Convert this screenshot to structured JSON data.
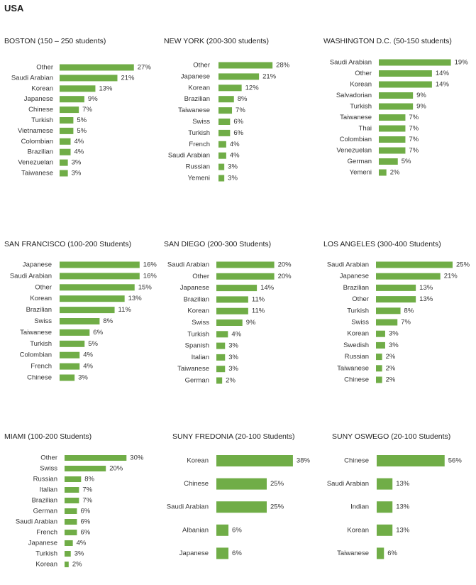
{
  "page_title": "USA",
  "colors": {
    "bar": "#70ad47",
    "text": "#333333"
  },
  "chart_data": [
    {
      "type": "bar",
      "orientation": "horizontal",
      "title": "BOSTON (150 – 250 students)",
      "categories": [
        "Other",
        "Saudi Arabian",
        "Korean",
        "Japanese",
        "Chinese",
        "Turkish",
        "Vietnamese",
        "Colombian",
        "Brazilian",
        "Venezuelan",
        "Taiwanese"
      ],
      "values": [
        27,
        21,
        13,
        9,
        7,
        5,
        5,
        4,
        4,
        3,
        3
      ],
      "value_labels": [
        "27%",
        "21%",
        "13%",
        "9%",
        "7%",
        "5%",
        "5%",
        "4%",
        "4%",
        "3%",
        "3%"
      ]
    },
    {
      "type": "bar",
      "orientation": "horizontal",
      "title": "NEW YORK (200-300 students)",
      "categories": [
        "Other",
        "Japanese",
        "Korean",
        "Brazilian",
        "Taiwanese",
        "Swiss",
        "Turkish",
        "French",
        "Saudi Arabian",
        "Russian",
        "Yemeni"
      ],
      "values": [
        28,
        21,
        12,
        8,
        7,
        6,
        6,
        4,
        4,
        3,
        3
      ],
      "value_labels": [
        "28%",
        "21%",
        "12%",
        "8%",
        "7%",
        "6%",
        "6%",
        "4%",
        "4%",
        "3%",
        "3%"
      ]
    },
    {
      "type": "bar",
      "orientation": "horizontal",
      "title": "WASHINGTON D.C. (50-150 students)",
      "categories": [
        "Saudi Arabian",
        "Other",
        "Korean",
        "Salvadorian",
        "Turkish",
        "Taiwanese",
        "Thai",
        "Colombian",
        "Venezuelan",
        "German",
        "Yemeni"
      ],
      "values": [
        19,
        14,
        14,
        9,
        9,
        7,
        7,
        7,
        7,
        5,
        2
      ],
      "value_labels": [
        "19%",
        "14%",
        "14%",
        "9%",
        "9%",
        "7%",
        "7%",
        "7%",
        "7%",
        "5%",
        "2%"
      ]
    },
    {
      "type": "bar",
      "orientation": "horizontal",
      "title": "SAN FRANCISCO (100-200 Students)",
      "categories": [
        "Japanese",
        "Saudi Arabian",
        "Other",
        "Korean",
        "Brazilian",
        "Swiss",
        "Taiwanese",
        "Turkish",
        "Colombian",
        "French",
        "Chinese"
      ],
      "values": [
        16,
        16,
        15,
        13,
        11,
        8,
        6,
        5,
        4,
        4,
        3
      ],
      "value_labels": [
        "16%",
        "16%",
        "15%",
        "13%",
        "11%",
        "8%",
        "6%",
        "5%",
        "4%",
        "4%",
        "3%"
      ]
    },
    {
      "type": "bar",
      "orientation": "horizontal",
      "title": "SAN DIEGO (200-300 Students)",
      "categories": [
        "Saudi Arabian",
        "Other",
        "Japanese",
        "Brazilian",
        "Korean",
        "Swiss",
        "Turkish",
        "Spanish",
        "Italian",
        "Taiwanese",
        "German"
      ],
      "values": [
        20,
        20,
        14,
        11,
        11,
        9,
        4,
        3,
        3,
        3,
        2
      ],
      "value_labels": [
        "20%",
        "20%",
        "14%",
        "11%",
        "11%",
        "9%",
        "4%",
        "3%",
        "3%",
        "3%",
        "2%"
      ]
    },
    {
      "type": "bar",
      "orientation": "horizontal",
      "title": "LOS ANGELES (300-400 Students)",
      "categories": [
        "Saudi Arabian",
        "Japanese",
        "Brazilian",
        "Other",
        "Turkish",
        "Swiss",
        "Korean",
        "Swedish",
        "Russian",
        "Taiwanese",
        "Chinese"
      ],
      "values": [
        25,
        21,
        13,
        13,
        8,
        7,
        3,
        3,
        2,
        2,
        2
      ],
      "value_labels": [
        "25%",
        "21%",
        "13%",
        "13%",
        "8%",
        "7%",
        "3%",
        "3%",
        "2%",
        "2%",
        "2%"
      ]
    },
    {
      "type": "bar",
      "orientation": "horizontal",
      "title": "MIAMI (100-200 Students)",
      "categories": [
        "Other",
        "Swiss",
        "Russian",
        "Italian",
        "Brazilian",
        "German",
        "Saudi Arabian",
        "French",
        "Japanese",
        "Turkish",
        "Korean"
      ],
      "values": [
        30,
        20,
        8,
        7,
        7,
        6,
        6,
        6,
        4,
        3,
        2
      ],
      "value_labels": [
        "30%",
        "20%",
        "8%",
        "7%",
        "7%",
        "6%",
        "6%",
        "6%",
        "4%",
        "3%",
        "2%"
      ]
    },
    {
      "type": "bar",
      "orientation": "horizontal",
      "title": "SUNY FREDONIA (20-100 Students)",
      "categories": [
        "Korean",
        "Chinese",
        "Saudi Arabian",
        "Albanian",
        "Japanese"
      ],
      "values": [
        38,
        25,
        25,
        6,
        6
      ],
      "value_labels": [
        "38%",
        "25%",
        "25%",
        "6%",
        "6%"
      ]
    },
    {
      "type": "bar",
      "orientation": "horizontal",
      "title": "SUNY OSWEGO (20-100 Students)",
      "categories": [
        "Chinese",
        "Saudi Arabian",
        "Indian",
        "Korean",
        "Taiwanese"
      ],
      "values": [
        56,
        13,
        13,
        13,
        6
      ],
      "value_labels": [
        "56%",
        "13%",
        "13%",
        "13%",
        "6%"
      ]
    }
  ]
}
